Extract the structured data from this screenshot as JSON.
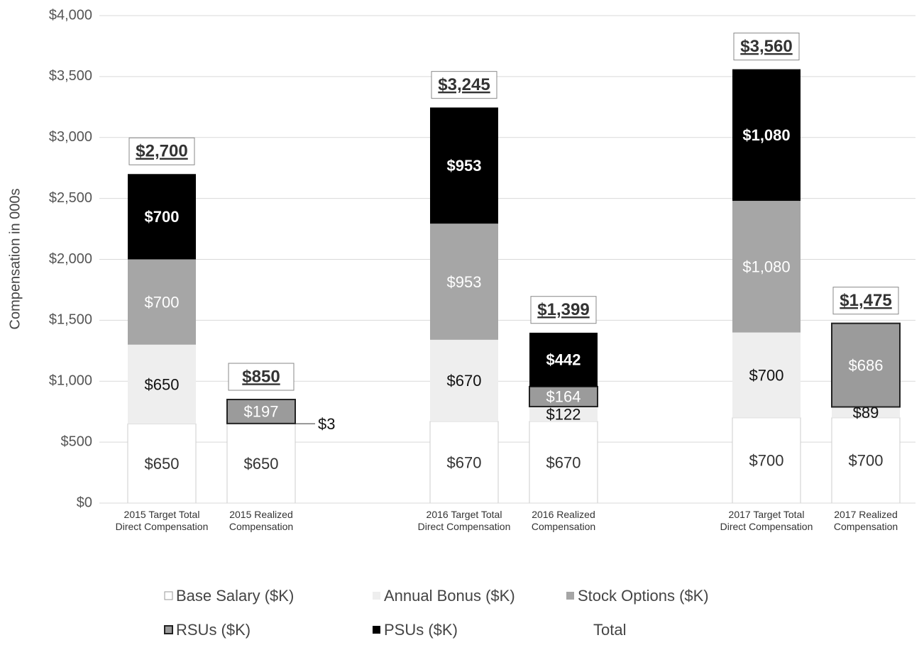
{
  "chart_data": {
    "type": "stacked_bar",
    "y_label": "Compensation in 000s",
    "categories": [
      "2015 Target Total Direct Compensation",
      "2015 Realized Compensation",
      "2016 Target Total Direct Compensation",
      "2016 Realized Compensation",
      "2017 Target Total Direct Compensation",
      "2017 Realized Compensation"
    ],
    "ylim": [
      0,
      4000
    ],
    "yticks": [
      {
        "value": 0,
        "label": "$0"
      },
      {
        "value": 500,
        "label": "$500"
      },
      {
        "value": 1000,
        "label": "$1,000"
      },
      {
        "value": 1500,
        "label": "$1,500"
      },
      {
        "value": 2000,
        "label": "$2,000"
      },
      {
        "value": 2500,
        "label": "$2,500"
      },
      {
        "value": 3000,
        "label": "$3,000"
      },
      {
        "value": 3500,
        "label": "$3,500"
      },
      {
        "value": 4000,
        "label": "$4,000"
      }
    ],
    "grid": true,
    "series": [
      {
        "name": "Base Salary ($K)",
        "color": "#ffffff",
        "values": [
          650,
          650,
          670,
          670,
          700,
          700
        ],
        "value_labels": [
          "$650",
          "$650",
          "$670",
          "$670",
          "$700",
          "$700"
        ]
      },
      {
        "name": "Annual Bonus ($K)",
        "color": "#eeeeee",
        "values": [
          650,
          3,
          670,
          122,
          700,
          89
        ],
        "value_labels": [
          "$650",
          "$3",
          "$670",
          "$122",
          "$700",
          "$89"
        ]
      },
      {
        "name": "Stock Options ($K)",
        "color": "#a6a6a6",
        "values": [
          700,
          null,
          953,
          null,
          1080,
          null
        ],
        "value_labels": [
          "$700",
          null,
          "$953",
          null,
          "$1,080",
          null
        ]
      },
      {
        "name": "RSUs ($K)",
        "color": "#9b9b9b",
        "values": [
          null,
          197,
          null,
          164,
          null,
          686
        ],
        "value_labels": [
          null,
          "$197",
          null,
          "$164",
          null,
          "$686"
        ]
      },
      {
        "name": "PSUs ($K)",
        "color": "#000000",
        "values": [
          700,
          null,
          953,
          442,
          1080,
          null
        ],
        "value_labels": [
          "$700",
          null,
          "$953",
          "$442",
          "$1,080",
          null
        ]
      },
      {
        "name": "Total",
        "values": [
          2700,
          850,
          3245,
          1399,
          3560,
          1475
        ],
        "value_labels": [
          "$2,700",
          "$850",
          "$3,245",
          "$1,399",
          "$3,560",
          "$1,475"
        ]
      }
    ]
  }
}
